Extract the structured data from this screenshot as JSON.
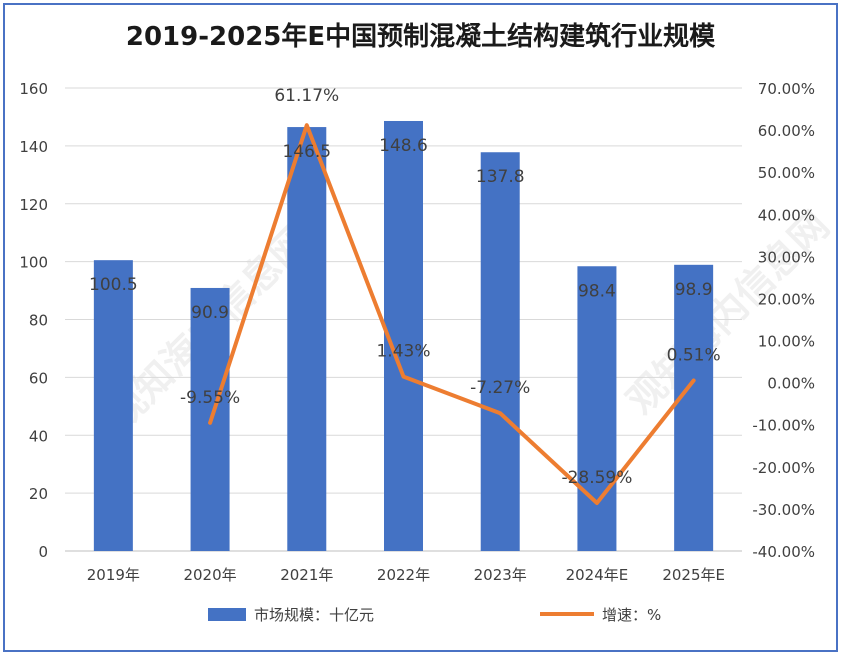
{
  "chart_data": {
    "type": "bar",
    "title": "2019-2025年E中国预制混凝土结构建筑行业规模",
    "categories": [
      "2019年",
      "2020年",
      "2021年",
      "2022年",
      "2023年",
      "2024年E",
      "2025年E"
    ],
    "series": [
      {
        "name": "市场规模：十亿元",
        "type": "bar",
        "axis": "left",
        "color": "#4472c4",
        "values": [
          100.5,
          90.9,
          146.5,
          148.6,
          137.8,
          98.4,
          98.9
        ],
        "labels": [
          "100.5",
          "90.9",
          "146.5",
          "148.6",
          "137.8",
          "98.4",
          "98.9"
        ]
      },
      {
        "name": "增速：%",
        "type": "line",
        "axis": "right",
        "color": "#ed7d31",
        "values": [
          null,
          -9.55,
          61.17,
          1.43,
          -7.27,
          -28.59,
          0.51
        ],
        "labels": [
          "",
          "-9.55%",
          "61.17%",
          "1.43%",
          "-7.27%",
          "-28.59%",
          "0.51%"
        ]
      }
    ],
    "y_left": {
      "ylim": [
        0,
        160
      ],
      "ticks": [
        "0",
        "20",
        "40",
        "60",
        "80",
        "100",
        "120",
        "140",
        "160"
      ]
    },
    "y_right": {
      "ylim": [
        -40,
        70
      ],
      "ticks": [
        "-40.00%",
        "-30.00%",
        "-20.00%",
        "-10.00%",
        "0.00%",
        "10.00%",
        "20.00%",
        "30.00%",
        "40.00%",
        "50.00%",
        "60.00%",
        "70.00%"
      ]
    },
    "grid": true,
    "legend": "bottom"
  },
  "watermark": "观知海内信息网"
}
